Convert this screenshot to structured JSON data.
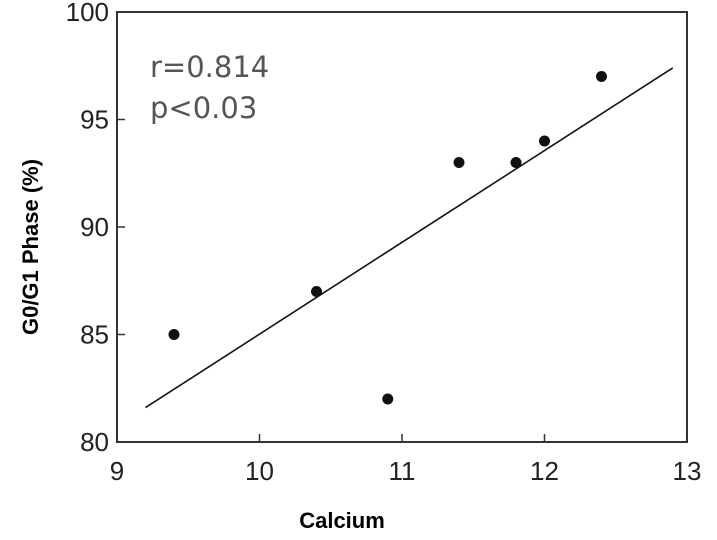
{
  "chart_data": {
    "type": "scatter",
    "xlabel": "Calcium",
    "ylabel": "G0/G1 Phase (%)",
    "xlim": [
      9,
      13
    ],
    "ylim": [
      80,
      100
    ],
    "xticks": [
      "9",
      "10",
      "11",
      "12",
      "13"
    ],
    "yticks": [
      "80",
      "85",
      "90",
      "95",
      "100"
    ],
    "points": [
      {
        "x": 9.4,
        "y": 85
      },
      {
        "x": 10.4,
        "y": 87
      },
      {
        "x": 10.9,
        "y": 82
      },
      {
        "x": 11.4,
        "y": 93
      },
      {
        "x": 11.8,
        "y": 93
      },
      {
        "x": 12.0,
        "y": 94
      },
      {
        "x": 12.4,
        "y": 97
      }
    ],
    "fit_line": {
      "x": [
        9.2,
        12.9
      ],
      "y": [
        81.6,
        97.4
      ]
    },
    "annotations": [
      "r=0.814",
      "p<0.03"
    ],
    "grid": false,
    "legend": "none"
  }
}
